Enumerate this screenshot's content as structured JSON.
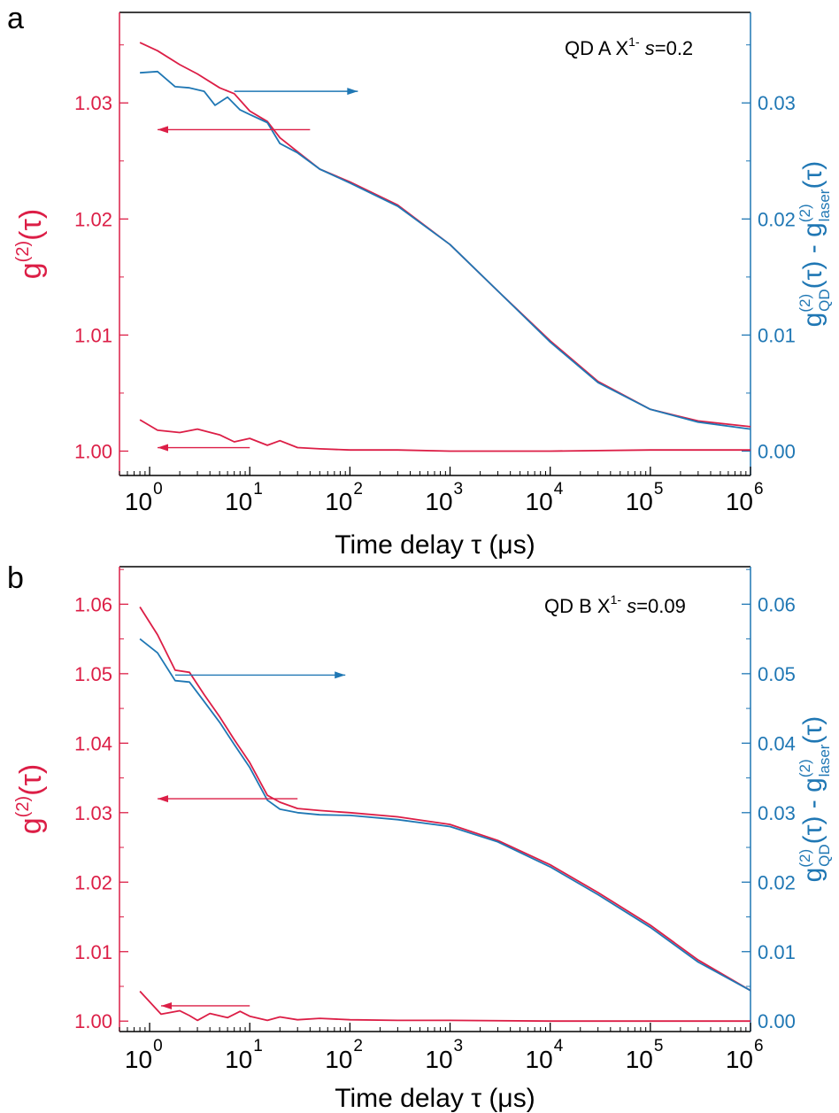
{
  "colors": {
    "left": "#dc1e46",
    "right": "#1f77b4",
    "frame": "#000000"
  },
  "chart_data": [
    {
      "panel_label": "a",
      "type": "line",
      "x_scale": "log",
      "xlim": [
        0.5,
        1000000
      ],
      "xlabel": "Time delay τ (μs)",
      "x_tick_bases": [
        "10",
        "10",
        "10",
        "10",
        "10",
        "10",
        "10"
      ],
      "x_tick_exps": [
        "0",
        "1",
        "2",
        "3",
        "4",
        "5",
        "6"
      ],
      "x_tick_values": [
        1,
        10,
        100,
        1000,
        10000,
        100000,
        1000000
      ],
      "ylabel_left": {
        "main": "g",
        "sup": "(2)",
        "tail": "(τ)"
      },
      "ylim_left": [
        0.9979,
        1.0378
      ],
      "yticks_left": [
        1.0,
        1.01,
        1.02,
        1.03
      ],
      "ytick_labels_left": [
        "1.00",
        "1.01",
        "1.02",
        "1.03"
      ],
      "ylabel_right": {
        "g1": "g",
        "s1": "(2)",
        "b1": "QD",
        "mid": "(τ) - g",
        "s2": "(2)",
        "b2": "laser",
        "tail": "(τ)"
      },
      "ylim_right": [
        -0.0021,
        0.0378
      ],
      "yticks_right": [
        0.0,
        0.01,
        0.02,
        0.03
      ],
      "ytick_labels_right": [
        "0.00",
        "0.01",
        "0.02",
        "0.03"
      ],
      "annotation": {
        "pre": "QD A X",
        "sup": "1-",
        "mid": " s",
        "post": "=0.2"
      },
      "series": [
        {
          "axis": "left",
          "color": "#dc1e46",
          "x": [
            0.8,
            1.2,
            2,
            3,
            5,
            7,
            10,
            15,
            20,
            30,
            50,
            100,
            300,
            1000,
            3000,
            10000,
            30000,
            100000,
            300000,
            1000000
          ],
          "y": [
            1.0352,
            1.0345,
            1.0333,
            1.0325,
            1.0313,
            1.0308,
            1.0293,
            1.0284,
            1.027,
            1.0258,
            1.0243,
            1.0232,
            1.0212,
            1.0178,
            1.0138,
            1.0095,
            1.006,
            1.0036,
            1.0026,
            1.0021
          ]
        },
        {
          "axis": "right",
          "color": "#1f77b4",
          "x": [
            0.8,
            1.2,
            1.8,
            2.5,
            3.5,
            4.5,
            6,
            8,
            10,
            15,
            20,
            30,
            50,
            100,
            300,
            1000,
            3000,
            10000,
            30000,
            100000,
            300000,
            1000000
          ],
          "y": [
            0.0326,
            0.0327,
            0.0314,
            0.0313,
            0.031,
            0.0298,
            0.0305,
            0.0294,
            0.029,
            0.0283,
            0.0265,
            0.0257,
            0.0243,
            0.0231,
            0.0211,
            0.0178,
            0.0138,
            0.0094,
            0.0059,
            0.0036,
            0.0025,
            0.0019
          ]
        },
        {
          "axis": "left",
          "color": "#dc1e46",
          "x": [
            0.8,
            1.2,
            2,
            3,
            5,
            7,
            10,
            15,
            20,
            30,
            50,
            100,
            300,
            1000,
            10000,
            100000,
            1000000
          ],
          "y": [
            1.0027,
            1.0018,
            1.0016,
            1.0019,
            1.0014,
            1.0008,
            1.0011,
            1.0005,
            1.0009,
            1.0003,
            1.0002,
            1.0001,
            1.0001,
            1.0,
            1.0,
            1.0001,
            1.0001
          ]
        }
      ],
      "arrows": [
        {
          "from_x": 7,
          "to_x": 120,
          "y": 0.031,
          "axis": "right",
          "color": "#1f77b4"
        },
        {
          "from_x": 40,
          "to_x": 1.2,
          "y": 1.0277,
          "axis": "left",
          "color": "#dc1e46"
        },
        {
          "from_x": 10,
          "to_x": 1.2,
          "y": 1.0003,
          "axis": "left",
          "color": "#dc1e46"
        }
      ]
    },
    {
      "panel_label": "b",
      "type": "line",
      "x_scale": "log",
      "xlim": [
        0.5,
        1000000
      ],
      "xlabel": "Time delay τ (μs)",
      "x_tick_bases": [
        "10",
        "10",
        "10",
        "10",
        "10",
        "10",
        "10"
      ],
      "x_tick_exps": [
        "0",
        "1",
        "2",
        "3",
        "4",
        "5",
        "6"
      ],
      "x_tick_values": [
        1,
        10,
        100,
        1000,
        10000,
        100000,
        1000000
      ],
      "ylabel_left": {
        "main": "g",
        "sup": "(2)",
        "tail": "(τ)"
      },
      "ylim_left": [
        0.9985,
        1.0654
      ],
      "yticks_left": [
        1.0,
        1.01,
        1.02,
        1.03,
        1.04,
        1.05,
        1.06
      ],
      "ytick_labels_left": [
        "1.00",
        "1.01",
        "1.02",
        "1.03",
        "1.04",
        "1.05",
        "1.06"
      ],
      "ylabel_right": {
        "g1": "g",
        "s1": "(2)",
        "b1": "QD",
        "mid": "(τ) - g",
        "s2": "(2)",
        "b2": "laser",
        "tail": "(τ)"
      },
      "ylim_right": [
        -0.0015,
        0.0654
      ],
      "yticks_right": [
        0.0,
        0.01,
        0.02,
        0.03,
        0.04,
        0.05,
        0.06
      ],
      "ytick_labels_right": [
        "0.00",
        "0.01",
        "0.02",
        "0.03",
        "0.04",
        "0.05",
        "0.06"
      ],
      "annotation": {
        "pre": "QD B X",
        "sup": "1-",
        "mid": " s",
        "post": "=0.09"
      },
      "series": [
        {
          "axis": "left",
          "color": "#dc1e46",
          "x": [
            0.8,
            1.2,
            1.8,
            2.5,
            3.5,
            5,
            7,
            10,
            15,
            20,
            30,
            50,
            100,
            300,
            1000,
            3000,
            10000,
            30000,
            100000,
            300000,
            1000000
          ],
          "y": [
            1.0596,
            1.0556,
            1.0505,
            1.0502,
            1.047,
            1.0438,
            1.0405,
            1.0372,
            1.0325,
            1.0315,
            1.0306,
            1.0303,
            1.03,
            1.0294,
            1.0283,
            1.026,
            1.0225,
            1.0185,
            1.0138,
            1.0088,
            1.0044
          ]
        },
        {
          "axis": "right",
          "color": "#1f77b4",
          "x": [
            0.8,
            1.2,
            1.8,
            2.5,
            3.5,
            5,
            7,
            10,
            15,
            20,
            30,
            50,
            100,
            300,
            1000,
            3000,
            10000,
            30000,
            100000,
            300000,
            1000000
          ],
          "y": [
            0.055,
            0.053,
            0.049,
            0.0488,
            0.046,
            0.043,
            0.0398,
            0.0365,
            0.0318,
            0.0305,
            0.03,
            0.0297,
            0.0296,
            0.029,
            0.028,
            0.0258,
            0.0222,
            0.0182,
            0.0135,
            0.0085,
            0.0044
          ]
        },
        {
          "axis": "left",
          "color": "#dc1e46",
          "x": [
            0.8,
            1.3,
            2,
            2.5,
            3,
            4,
            6,
            8,
            10,
            15,
            20,
            30,
            50,
            100,
            300,
            1000,
            10000,
            100000,
            1000000
          ],
          "y": [
            1.0043,
            1.001,
            1.0015,
            1.0008,
            1.0001,
            1.0011,
            1.0005,
            1.0014,
            1.0007,
            1.0001,
            1.0006,
            1.0002,
            1.0004,
            1.0002,
            1.0001,
            1.0001,
            1.0,
            1.0,
            1.0
          ]
        }
      ],
      "arrows": [
        {
          "from_x": 1.8,
          "to_x": 90,
          "y": 0.0498,
          "axis": "right",
          "color": "#1f77b4"
        },
        {
          "from_x": 30,
          "to_x": 1.2,
          "y": 1.032,
          "axis": "left",
          "color": "#dc1e46"
        },
        {
          "from_x": 10,
          "to_x": 1.3,
          "y": 1.0022,
          "axis": "left",
          "color": "#dc1e46"
        }
      ]
    }
  ]
}
